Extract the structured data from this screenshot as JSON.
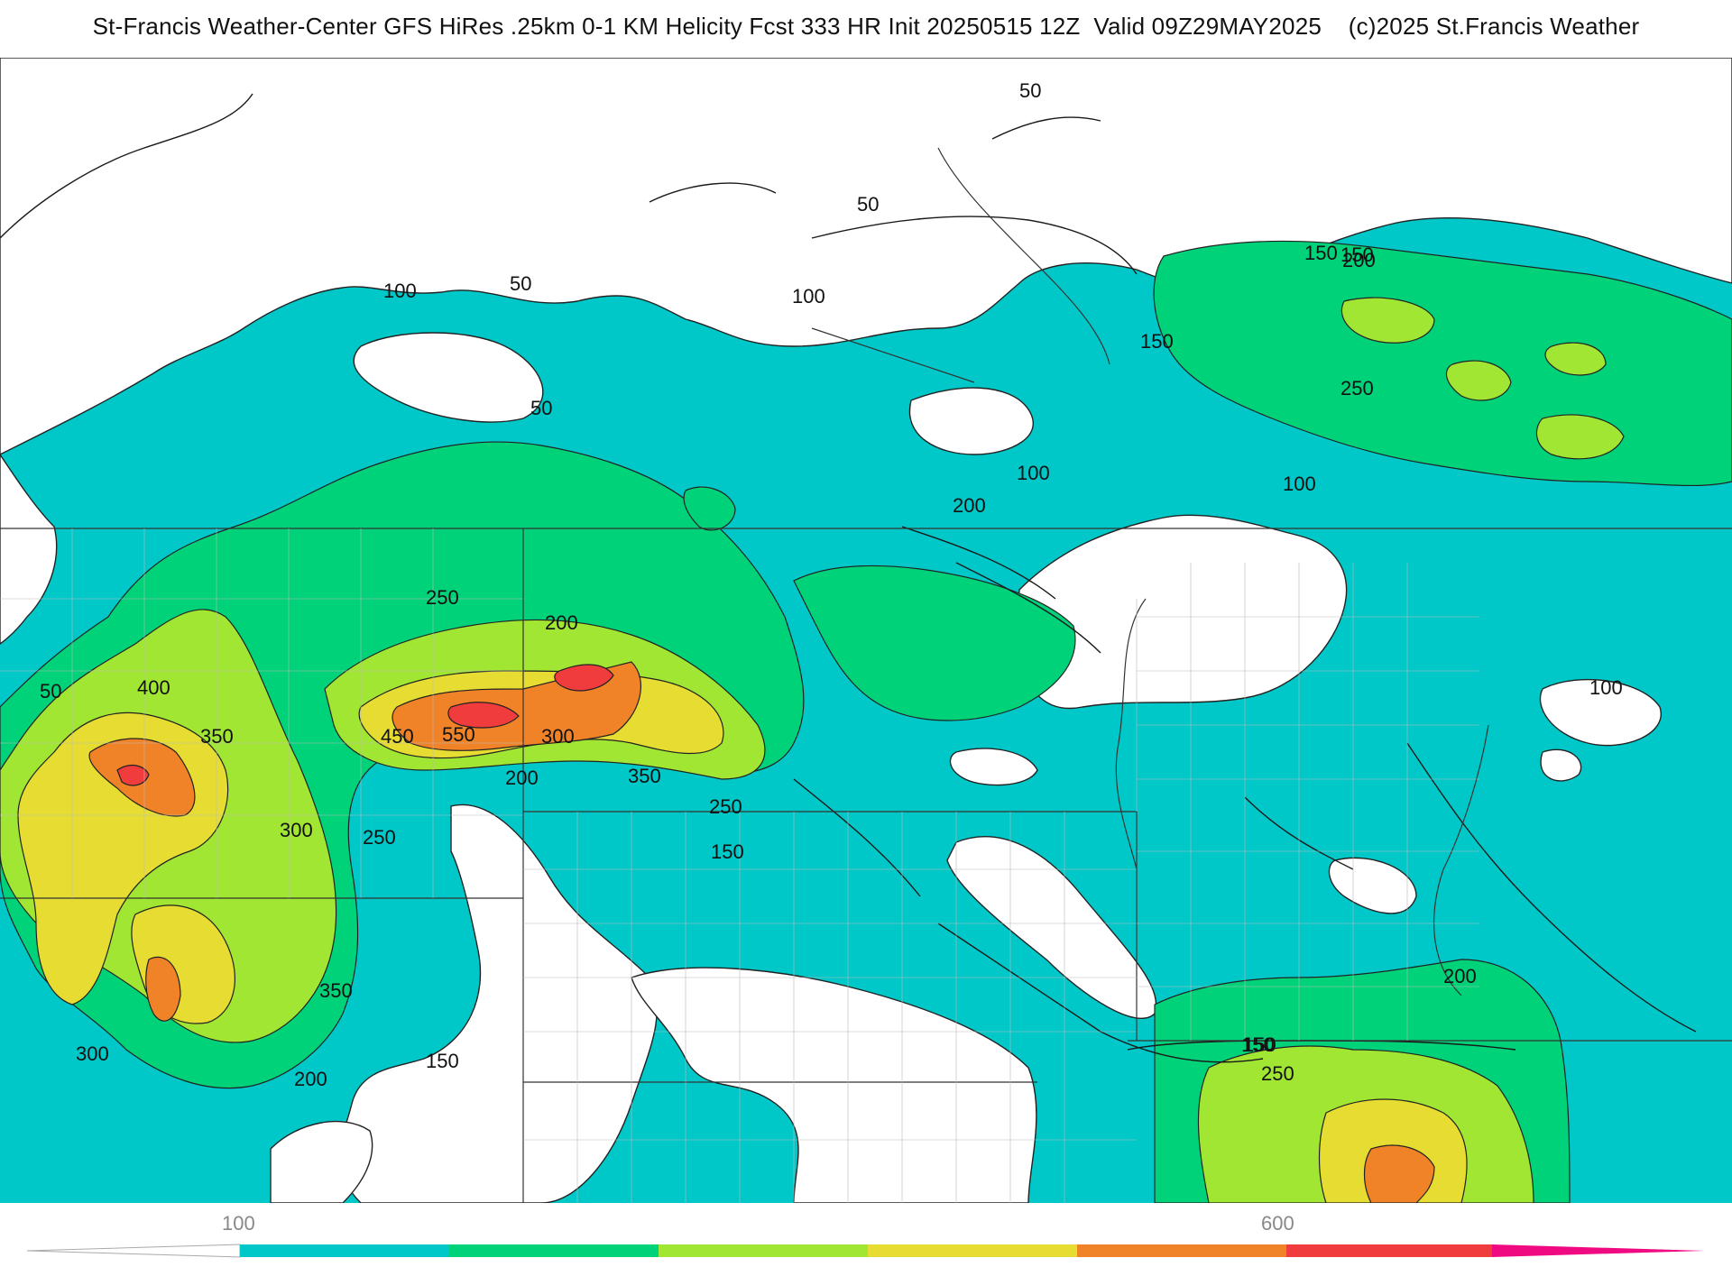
{
  "header": {
    "title": "St-Francis Weather-Center GFS HiRes .25km 0-1 KM Helicity Fcst 333 HR Init 20250515 12Z  Valid 09Z29MAY2025    (c)2025 St.Francis Weather"
  },
  "map": {
    "contour_labels": [
      "50",
      "50",
      "50",
      "50",
      "100",
      "100",
      "100",
      "100",
      "100",
      "150",
      "150",
      "150",
      "150",
      "150",
      "150",
      "200",
      "200",
      "200",
      "200",
      "200",
      "200",
      "250",
      "250",
      "250",
      "250",
      "250",
      "300",
      "300",
      "300",
      "350",
      "350",
      "350",
      "400",
      "450",
      "550",
      "50",
      "150"
    ],
    "fill_levels": [
      {
        "min": 0,
        "color": "#ffffff"
      },
      {
        "min": 100,
        "color": "#00c8c8"
      },
      {
        "min": 200,
        "color": "#00d27a"
      },
      {
        "min": 300,
        "color": "#a0e632"
      },
      {
        "min": 400,
        "color": "#e6dc32"
      },
      {
        "min": 500,
        "color": "#f08228"
      },
      {
        "min": 600,
        "color": "#f03c3c"
      },
      {
        "min": 700,
        "color": "#f00a82"
      }
    ]
  },
  "legend": {
    "tick_labels": [
      "100",
      "600"
    ],
    "colors": [
      "#00c8c8",
      "#00d27a",
      "#a0e632",
      "#e6dc32",
      "#f08228",
      "#f03c3c",
      "#f00a82"
    ]
  }
}
